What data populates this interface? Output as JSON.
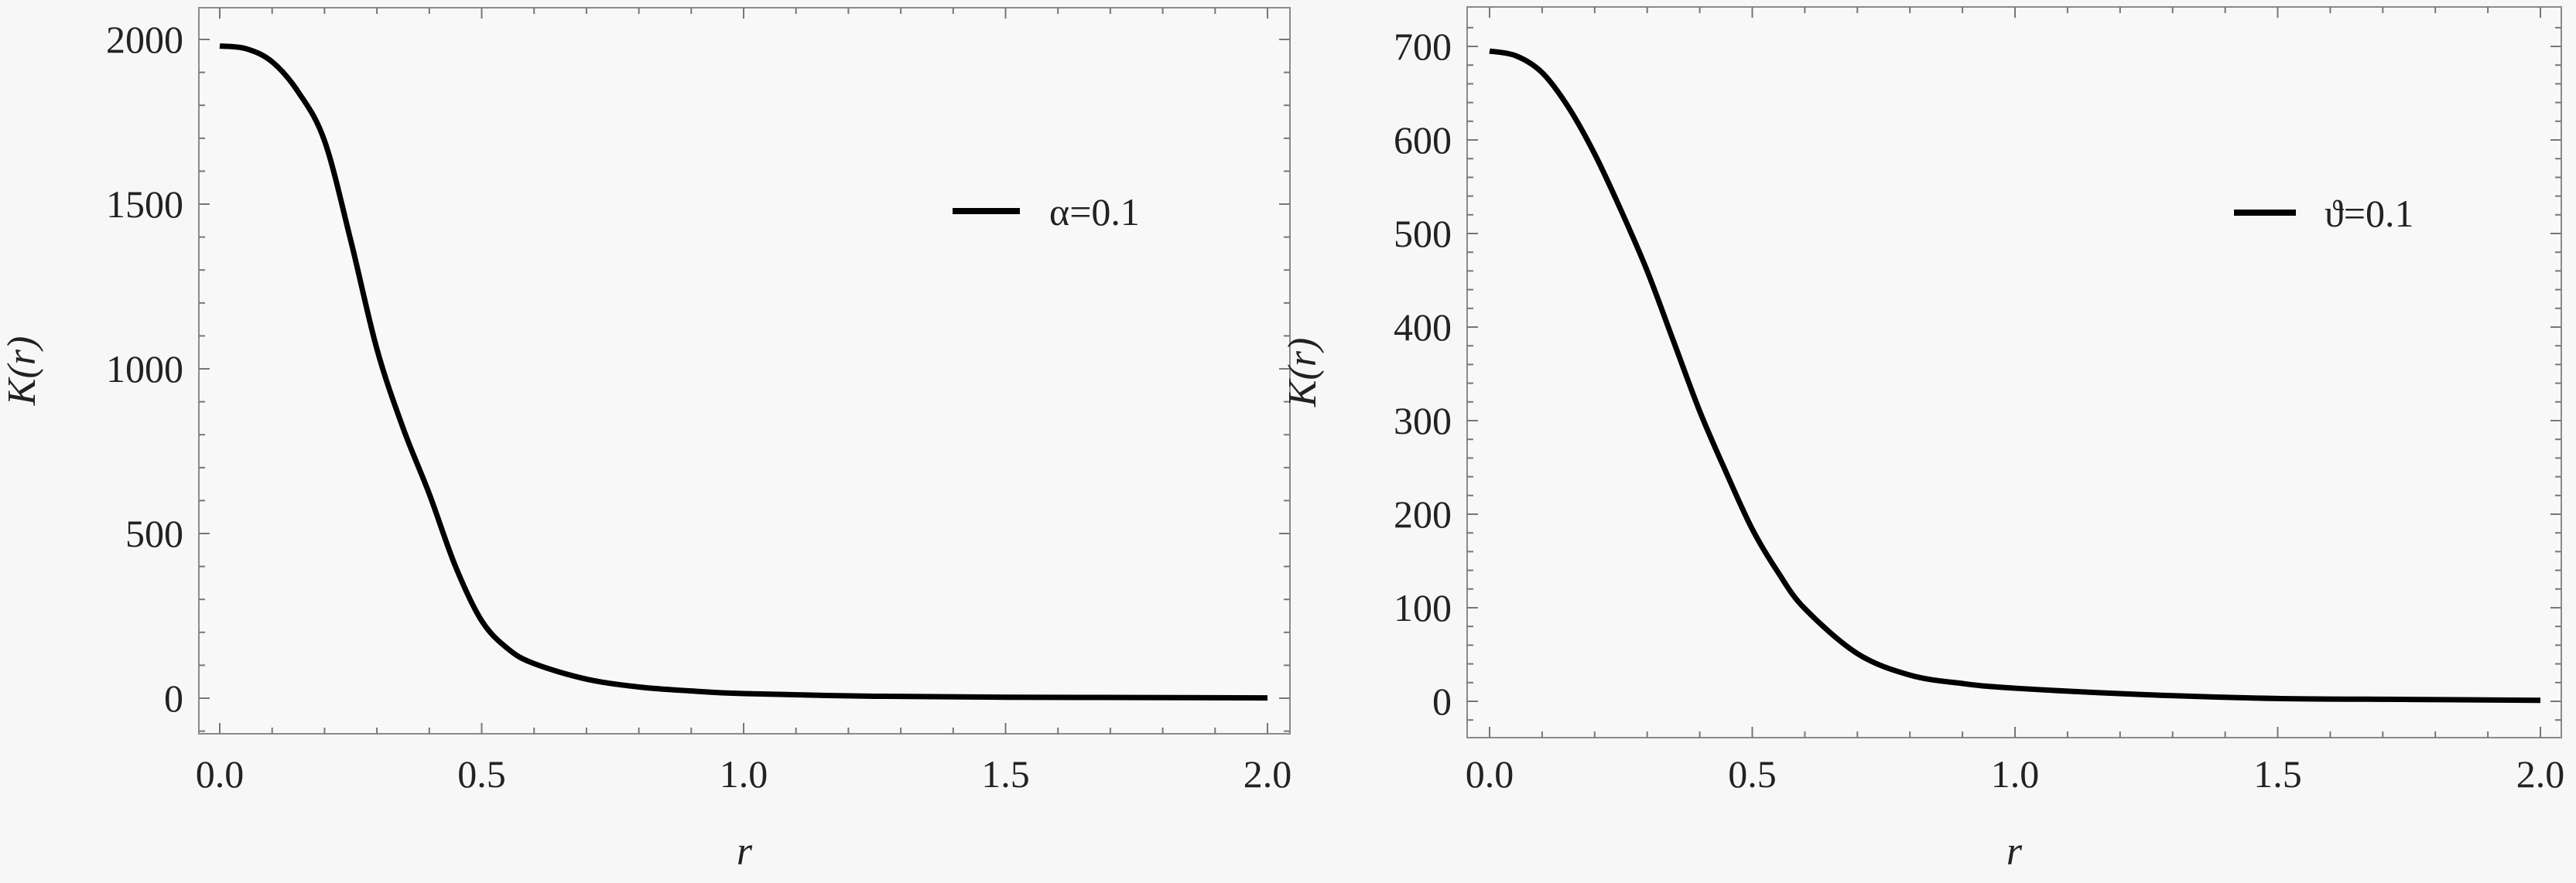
{
  "chart_data": [
    {
      "type": "line",
      "xlabel": "r",
      "ylabel": "K(r)",
      "xlim": [
        0,
        2
      ],
      "ylim": [
        -110,
        2100
      ],
      "xticks": [
        "0.0",
        "0.5",
        "1.0",
        "1.5",
        "2.0"
      ],
      "yticks": [
        "0",
        "500",
        "1000",
        "1500",
        "2000"
      ],
      "legend": {
        "label": "α=0.1",
        "position": "top-right"
      },
      "grid": false,
      "color": "#000000",
      "series": [
        {
          "name": "α=0.1",
          "x": [
            0,
            0.05,
            0.1,
            0.15,
            0.2,
            0.25,
            0.3,
            0.35,
            0.4,
            0.45,
            0.5,
            0.55,
            0.6,
            0.7,
            0.8,
            0.9,
            1.0,
            1.25,
            1.5,
            1.75,
            2.0
          ],
          "y": [
            1980,
            1972,
            1932,
            1840,
            1692,
            1390,
            1060,
            820,
            620,
            400,
            235,
            150,
            105,
            58,
            34,
            22,
            14,
            6,
            3,
            2,
            1
          ]
        }
      ]
    },
    {
      "type": "line",
      "xlabel": "r",
      "ylabel": "K(r)",
      "xlim": [
        0,
        2
      ],
      "ylim": [
        -40,
        735
      ],
      "xticks": [
        "0.0",
        "0.5",
        "1.0",
        "1.5",
        "2.0"
      ],
      "yticks": [
        "0",
        "100",
        "200",
        "300",
        "400",
        "500",
        "600",
        "700"
      ],
      "legend": {
        "label": "ϑ=0.1",
        "position": "top-right"
      },
      "grid": false,
      "color": "#000000",
      "series": [
        {
          "name": "ϑ=0.1",
          "x": [
            0,
            0.05,
            0.1,
            0.15,
            0.2,
            0.25,
            0.3,
            0.35,
            0.4,
            0.45,
            0.5,
            0.55,
            0.6,
            0.7,
            0.8,
            0.9,
            1.0,
            1.25,
            1.5,
            1.75,
            2.0
          ],
          "y": [
            695,
            690,
            672,
            635,
            585,
            525,
            460,
            385,
            310,
            245,
            184,
            137,
            99,
            51,
            28,
            19,
            14,
            7,
            3,
            2,
            1
          ]
        }
      ]
    }
  ]
}
